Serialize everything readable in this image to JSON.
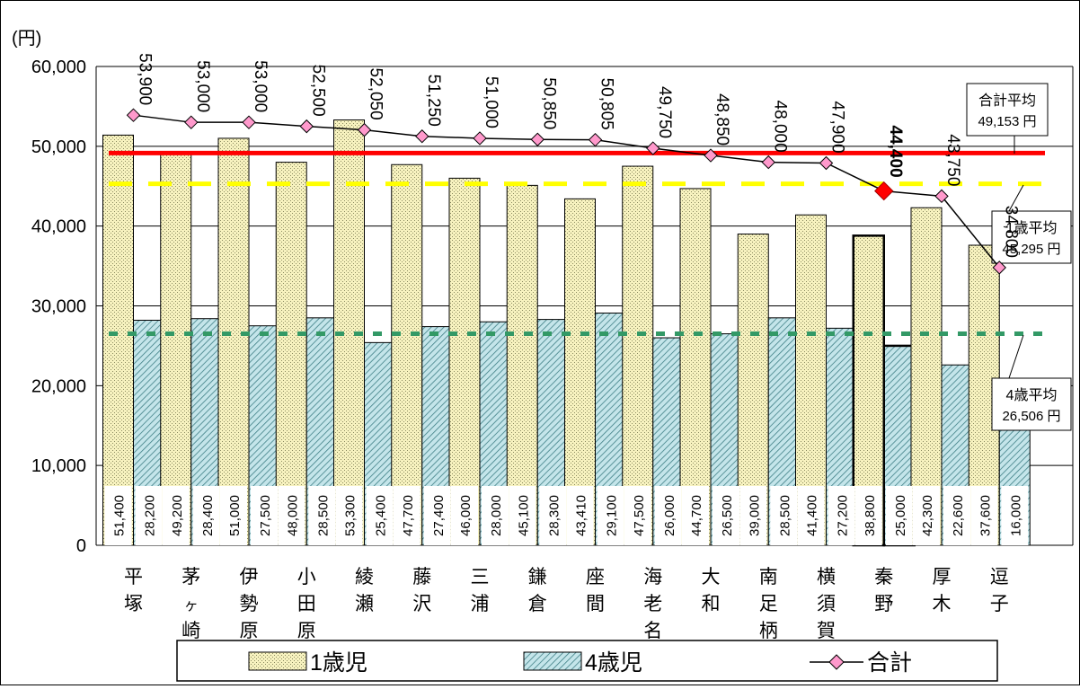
{
  "chart_data": {
    "type": "bar",
    "unit_label": "(円)",
    "y_ticks": [
      "0",
      "10,000",
      "20,000",
      "30,000",
      "40,000",
      "50,000",
      "60,000"
    ],
    "ylim": [
      0,
      60000
    ],
    "categories": [
      "平塚",
      "茅ヶ崎",
      "伊勢原",
      "小田原",
      "綾瀬",
      "藤沢",
      "三浦",
      "鎌倉",
      "座間",
      "海老名",
      "大和",
      "南足柄",
      "横須賀",
      "秦野",
      "厚木",
      "逗子"
    ],
    "series": [
      {
        "name": "1歳児",
        "values": [
          51400,
          49200,
          51000,
          48000,
          53300,
          47700,
          46000,
          45100,
          43410,
          47500,
          44700,
          39000,
          41400,
          38800,
          42300,
          37600
        ],
        "labels": [
          "51,400",
          "49,200",
          "51,000",
          "48,000",
          "53,300",
          "47,700",
          "46,000",
          "45,100",
          "43,410",
          "47,500",
          "44,700",
          "39,000",
          "41,400",
          "38,800",
          "42,300",
          "37,600"
        ]
      },
      {
        "name": "4歳児",
        "values": [
          28200,
          28400,
          27500,
          28500,
          25400,
          27400,
          28000,
          28300,
          29100,
          26000,
          26500,
          28500,
          27200,
          25000,
          22600,
          16000
        ],
        "labels": [
          "28,200",
          "28,400",
          "27,500",
          "28,500",
          "25,400",
          "27,400",
          "28,000",
          "28,300",
          "29,100",
          "26,000",
          "26,500",
          "28,500",
          "27,200",
          "25,000",
          "22,600",
          "16,000"
        ]
      },
      {
        "name": "合計",
        "values": [
          53900,
          53000,
          53000,
          52500,
          52050,
          51250,
          51000,
          50850,
          50805,
          49750,
          48850,
          48000,
          47900,
          44400,
          43750,
          34800
        ],
        "labels": [
          "53,900",
          "53,000",
          "53,000",
          "52,500",
          "52,050",
          "51,250",
          "51,000",
          "50,850",
          "50,805",
          "49,750",
          "48,850",
          "48,000",
          "47,900",
          "44,400",
          "43,750",
          "34,800"
        ]
      }
    ],
    "highlight_index": 13,
    "reference_lines": [
      {
        "label": "合計平均",
        "value": 49153,
        "value_text": "49,153 円",
        "color": "#ff0000",
        "style": "solid"
      },
      {
        "label": "1歳平均",
        "value": 45295,
        "value_text": "45,295 円",
        "color": "#ffff00",
        "style": "dashed"
      },
      {
        "label": "4歳平均",
        "value": 26506,
        "value_text": "26,506 円",
        "color": "#339966",
        "style": "dotted"
      }
    ],
    "legend_position": "bottom",
    "grid": true,
    "colors": {
      "bar1": "#f5f0b8",
      "bar2": "#b9dfe4",
      "marker": "#ff99cc",
      "highlight": "#ff0000"
    }
  }
}
